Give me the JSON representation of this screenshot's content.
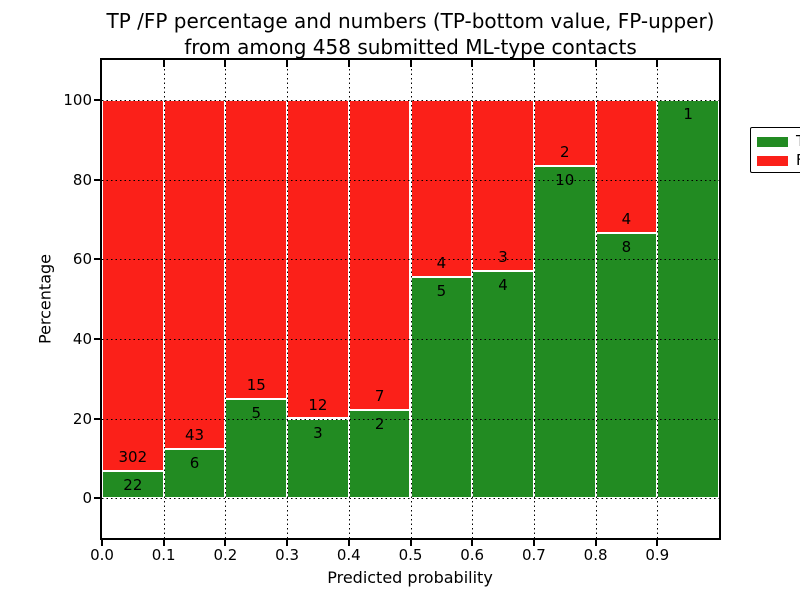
{
  "title": {
    "line1": "TP /FP percentage and numbers (TP-bottom value, FP-upper)",
    "line2": "from among 458 submitted ML-type contacts"
  },
  "axes": {
    "x_label": "Predicted probability",
    "y_label": "Percentage",
    "x_ticks": [
      {
        "label": "0.0",
        "value": 0.0
      },
      {
        "label": "0.1",
        "value": 0.1
      },
      {
        "label": "0.2",
        "value": 0.2
      },
      {
        "label": "0.3",
        "value": 0.3
      },
      {
        "label": "0.4",
        "value": 0.4
      },
      {
        "label": "0.5",
        "value": 0.5
      },
      {
        "label": "0.6",
        "value": 0.6
      },
      {
        "label": "0.7",
        "value": 0.7
      },
      {
        "label": "0.8",
        "value": 0.8
      },
      {
        "label": "0.9",
        "value": 0.9
      }
    ],
    "y_ticks": [
      {
        "label": "0",
        "value": 0
      },
      {
        "label": "20",
        "value": 20
      },
      {
        "label": "40",
        "value": 40
      },
      {
        "label": "60",
        "value": 60
      },
      {
        "label": "80",
        "value": 80
      },
      {
        "label": "100",
        "value": 100
      }
    ]
  },
  "legend": {
    "items": [
      {
        "label": "TP",
        "color": "#228b22"
      },
      {
        "label": "FP",
        "color": "#fb2019"
      }
    ]
  },
  "chart_data": {
    "type": "bar",
    "subtype": "stacked-percentage",
    "title": "TP /FP percentage and numbers (TP-bottom value, FP-upper) from among 458 submitted ML-type contacts",
    "xlabel": "Predicted probability",
    "ylabel": "Percentage",
    "xlim": [
      0.0,
      1.0
    ],
    "ylim": [
      -10,
      110
    ],
    "grid": "dotted, drawn over bars",
    "legend_position": "upper right",
    "bar_width": 0.1,
    "colors": {
      "tp": "#228b22",
      "fp": "#fb2019"
    },
    "total_contacts": 458,
    "categories": [
      "0.0-0.1",
      "0.1-0.2",
      "0.2-0.3",
      "0.3-0.4",
      "0.4-0.5",
      "0.5-0.6",
      "0.6-0.7",
      "0.7-0.8",
      "0.8-0.9",
      "0.9-1.0"
    ],
    "series": [
      {
        "name": "TP",
        "counts": [
          22,
          6,
          5,
          3,
          2,
          5,
          4,
          10,
          8,
          1
        ]
      },
      {
        "name": "FP",
        "counts": [
          302,
          43,
          15,
          12,
          7,
          4,
          3,
          2,
          4,
          0
        ]
      }
    ],
    "bins": [
      {
        "x0": 0.0,
        "x1": 0.1,
        "tp": 22,
        "fp": 302,
        "tp_pct": 6.79
      },
      {
        "x0": 0.1,
        "x1": 0.2,
        "tp": 6,
        "fp": 43,
        "tp_pct": 12.24
      },
      {
        "x0": 0.2,
        "x1": 0.3,
        "tp": 5,
        "fp": 15,
        "tp_pct": 25.0
      },
      {
        "x0": 0.3,
        "x1": 0.4,
        "tp": 3,
        "fp": 12,
        "tp_pct": 20.0
      },
      {
        "x0": 0.4,
        "x1": 0.5,
        "tp": 2,
        "fp": 7,
        "tp_pct": 22.22
      },
      {
        "x0": 0.5,
        "x1": 0.6,
        "tp": 5,
        "fp": 4,
        "tp_pct": 55.56
      },
      {
        "x0": 0.6,
        "x1": 0.7,
        "tp": 4,
        "fp": 3,
        "tp_pct": 57.14
      },
      {
        "x0": 0.7,
        "x1": 0.8,
        "tp": 10,
        "fp": 2,
        "tp_pct": 83.33
      },
      {
        "x0": 0.8,
        "x1": 0.9,
        "tp": 8,
        "fp": 4,
        "tp_pct": 66.67
      },
      {
        "x0": 0.9,
        "x1": 1.0,
        "tp": 1,
        "fp": 0,
        "tp_pct": 100.0
      }
    ]
  }
}
